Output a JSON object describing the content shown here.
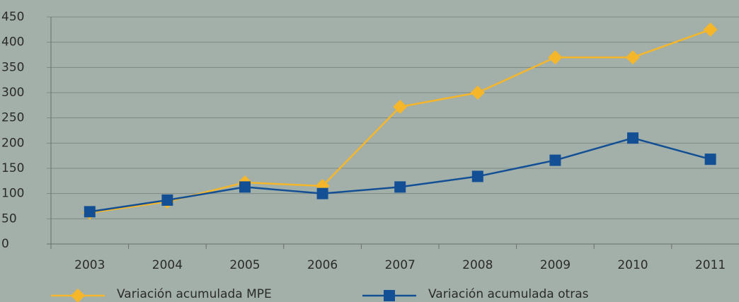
{
  "chart_data": {
    "type": "line",
    "categories": [
      "2003",
      "2004",
      "2005",
      "2006",
      "2007",
      "2008",
      "2009",
      "2010",
      "2011"
    ],
    "series": [
      {
        "name": "Variación acumulada MPE",
        "color": "#f5b629",
        "marker": "diamond",
        "values": [
          62,
          84,
          122,
          115,
          272,
          300,
          370,
          370,
          425
        ]
      },
      {
        "name": "Variación acumulada otras",
        "color": "#124f95",
        "marker": "square",
        "values": [
          64,
          87,
          113,
          100,
          113,
          134,
          166,
          210,
          168
        ]
      }
    ],
    "ylim": [
      0,
      450
    ],
    "yticks": [
      0,
      50,
      100,
      150,
      200,
      250,
      300,
      350,
      400,
      450
    ],
    "grid": true,
    "legend": "bottom"
  }
}
